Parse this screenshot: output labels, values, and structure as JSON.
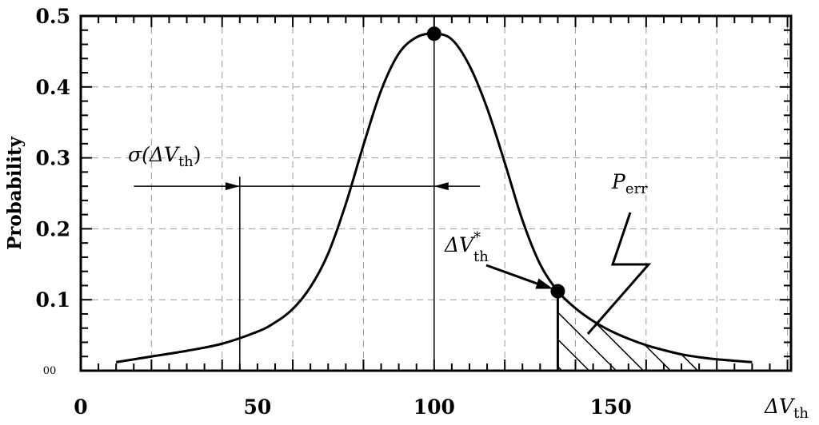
{
  "chart_data": {
    "type": "line",
    "title": "",
    "xlabel": "ΔV_th",
    "ylabel": "Probability",
    "xlim": [
      0,
      201
    ],
    "ylim": [
      0,
      0.5
    ],
    "grid": true,
    "x_ticks": [
      "0",
      "50",
      "100",
      "150"
    ],
    "x_tick_values": [
      0,
      50,
      100,
      150
    ],
    "y_ticks": [
      "0.1",
      "0.2",
      "0.3",
      "0.4",
      "0.5"
    ],
    "y_tick_values": [
      0.1,
      0.2,
      0.3,
      0.4,
      0.5
    ],
    "y_origin_label": "00",
    "series": [
      {
        "name": "",
        "x": [
          10,
          20,
          30,
          40,
          50,
          55,
          60,
          65,
          70,
          75,
          80,
          85,
          90,
          95,
          100,
          105,
          110,
          115,
          120,
          125,
          130,
          135,
          140,
          145,
          150,
          155,
          160,
          165,
          170,
          175,
          180,
          185,
          190
        ],
        "values": [
          0.012,
          0.02,
          0.028,
          0.038,
          0.055,
          0.068,
          0.087,
          0.118,
          0.165,
          0.235,
          0.318,
          0.395,
          0.447,
          0.47,
          0.475,
          0.467,
          0.43,
          0.37,
          0.293,
          0.212,
          0.15,
          0.112,
          0.088,
          0.07,
          0.056,
          0.045,
          0.036,
          0.029,
          0.023,
          0.019,
          0.016,
          0.014,
          0.012
        ]
      }
    ],
    "markers": [
      {
        "x": 100,
        "y": 0.475
      },
      {
        "x": 135,
        "y": 0.112
      }
    ],
    "sigma_line_x": 45,
    "sigma_arrow_y": 0.26,
    "sigma_arrow_range": [
      15,
      113
    ],
    "hatched_region_from_x": 135,
    "annotations": {
      "sigma": {
        "prefix": "σ(ΔV",
        "sub": "th",
        "suffix": ")"
      },
      "threshold": {
        "main": "ΔV",
        "sup": "*",
        "sub": "th"
      },
      "perr": {
        "main": "P",
        "sub": "err"
      }
    },
    "x_axis_title": {
      "main": "ΔV",
      "sub": "th"
    }
  }
}
